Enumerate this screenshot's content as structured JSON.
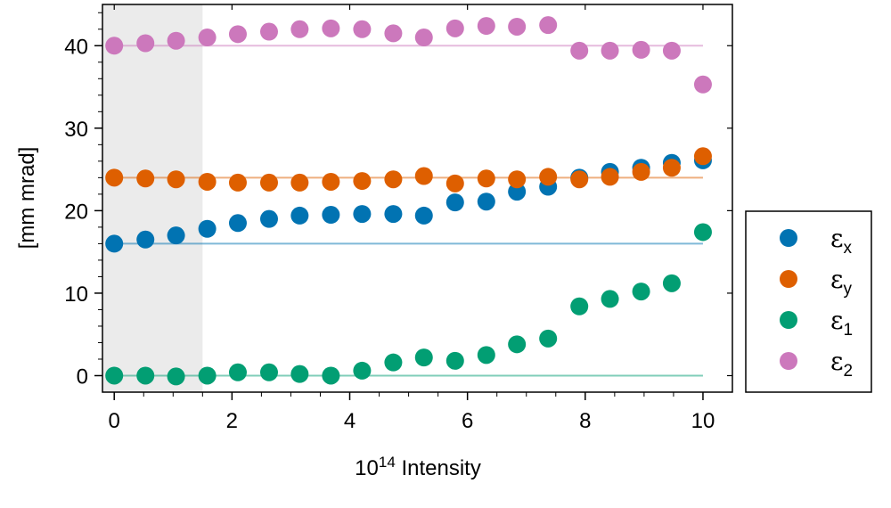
{
  "chart_data": {
    "type": "scatter",
    "xlabel": {
      "base": "10",
      "exponent": "14",
      "text": " Intensity"
    },
    "ylabel": "[mm mrad]",
    "xlim": [
      -0.2,
      10.5
    ],
    "ylim": [
      -2,
      45
    ],
    "xticks": [
      0,
      2,
      4,
      6,
      8,
      10
    ],
    "yticks": [
      0,
      10,
      20,
      30,
      40
    ],
    "shaded_region": [
      -0.2,
      1.5
    ],
    "legend_position": "outside-right",
    "x": [
      0,
      0.53,
      1.05,
      1.58,
      2.1,
      2.63,
      3.15,
      3.68,
      4.21,
      4.74,
      5.26,
      5.79,
      6.32,
      6.84,
      7.37,
      7.9,
      8.42,
      8.95,
      9.47,
      10
    ],
    "series": [
      {
        "symbol": "ε",
        "subscript": "x",
        "color": "#0173b2",
        "reference": 16,
        "values": [
          16.0,
          16.5,
          17.0,
          17.8,
          18.5,
          19.0,
          19.4,
          19.5,
          19.6,
          19.6,
          19.4,
          21.0,
          21.1,
          22.3,
          22.9,
          24.0,
          24.7,
          25.2,
          25.8,
          26.1
        ]
      },
      {
        "symbol": "ε",
        "subscript": "y",
        "color": "#de5f00",
        "reference": 24,
        "values": [
          24.0,
          23.9,
          23.8,
          23.5,
          23.4,
          23.4,
          23.4,
          23.5,
          23.6,
          23.8,
          24.2,
          23.3,
          23.9,
          23.8,
          24.1,
          23.8,
          24.1,
          24.7,
          25.2,
          26.6
        ]
      },
      {
        "symbol": "ε",
        "subscript": "1",
        "color": "#029e73",
        "reference": 0,
        "values": [
          0.0,
          0.0,
          -0.1,
          0.0,
          0.4,
          0.4,
          0.2,
          0.0,
          0.6,
          1.6,
          2.2,
          1.8,
          2.5,
          3.8,
          4.5,
          8.4,
          9.3,
          10.2,
          11.2,
          17.4
        ]
      },
      {
        "symbol": "ε",
        "subscript": "2",
        "color": "#cc78bc",
        "reference": 40,
        "values": [
          40.0,
          40.3,
          40.6,
          41.0,
          41.4,
          41.7,
          42.0,
          42.1,
          42.0,
          41.5,
          41.0,
          42.1,
          42.4,
          42.3,
          42.5,
          39.4,
          39.4,
          39.5,
          39.4,
          35.3
        ]
      }
    ]
  }
}
